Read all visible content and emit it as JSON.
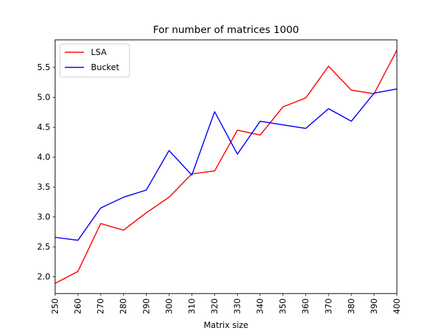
{
  "chart_data": {
    "type": "line",
    "title": "For number of matrices 1000",
    "xlabel": "Matrix size",
    "ylabel": "",
    "x": [
      250,
      260,
      270,
      280,
      290,
      300,
      310,
      320,
      330,
      340,
      350,
      360,
      370,
      380,
      390,
      400
    ],
    "xlim": [
      250,
      400
    ],
    "ylim": [
      1.72,
      5.96
    ],
    "yticks": [
      2.0,
      2.5,
      3.0,
      3.5,
      4.0,
      4.5,
      5.0,
      5.5
    ],
    "ytick_labels": [
      "2.0",
      "2.5",
      "3.0",
      "3.5",
      "4.0",
      "4.5",
      "5.0",
      "5.5"
    ],
    "xtick_labels": [
      "250",
      "260",
      "270",
      "280",
      "290",
      "300",
      "310",
      "320",
      "330",
      "340",
      "350",
      "360",
      "370",
      "380",
      "390",
      "400"
    ],
    "grid": false,
    "legend_position": "top-left",
    "series": [
      {
        "name": "LSA",
        "color": "#ff0000",
        "values": [
          1.89,
          2.09,
          2.89,
          2.78,
          3.07,
          3.33,
          3.72,
          3.77,
          4.45,
          4.37,
          4.84,
          4.99,
          5.52,
          5.12,
          5.06,
          5.79
        ]
      },
      {
        "name": "Bucket",
        "color": "#0000ff",
        "values": [
          2.66,
          2.61,
          3.15,
          3.33,
          3.45,
          4.11,
          3.7,
          4.76,
          4.05,
          4.6,
          4.54,
          4.48,
          4.81,
          4.6,
          5.07,
          5.14
        ]
      }
    ]
  }
}
